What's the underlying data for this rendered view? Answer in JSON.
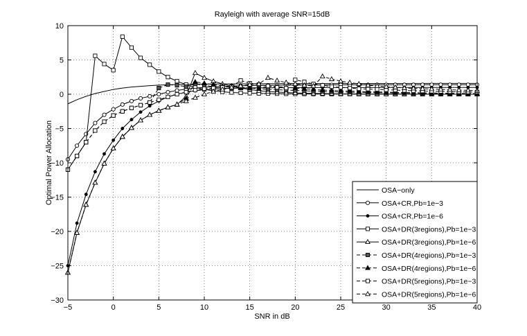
{
  "chart_data": {
    "type": "line",
    "title": "Rayleigh with average SNR=15dB",
    "xlabel": "SNR in dB",
    "ylabel": "Optimal Power Allocation",
    "xlim": [
      -5,
      40
    ],
    "ylim": [
      -30,
      10
    ],
    "xticks": [
      -5,
      0,
      5,
      10,
      15,
      20,
      25,
      30,
      35,
      40
    ],
    "yticks": [
      -30,
      -25,
      -20,
      -15,
      -10,
      -5,
      0,
      5,
      10
    ],
    "grid": true,
    "legend_position": "bottom-right",
    "series": [
      {
        "name": "OSA−only",
        "line": "solid",
        "marker": "none",
        "x": [
          -5,
          -4,
          -3,
          -2,
          -1,
          0,
          1,
          2,
          3,
          4,
          5,
          6,
          7,
          8,
          9,
          10,
          12,
          15,
          20,
          25,
          30,
          35,
          40
        ],
        "y": [
          -1.4,
          -0.8,
          -0.3,
          0.1,
          0.4,
          0.7,
          0.9,
          1.05,
          1.15,
          1.25,
          1.32,
          1.37,
          1.41,
          1.44,
          1.46,
          1.48,
          1.5,
          1.52,
          1.55,
          1.56,
          1.57,
          1.58,
          1.58
        ]
      },
      {
        "name": "OSA+CR,Pb=1e−3",
        "line": "solid",
        "marker": "circle",
        "x": [
          -5,
          -4,
          -3,
          -2,
          -1,
          0,
          1,
          2,
          3,
          4,
          5,
          6,
          7,
          8,
          9,
          10,
          11,
          12,
          13,
          14,
          15,
          16,
          17,
          18,
          19,
          20,
          21,
          22,
          23,
          24,
          25,
          26,
          27,
          28,
          29,
          30,
          31,
          32,
          33,
          34,
          35,
          36,
          37,
          38,
          39,
          40
        ],
        "y": [
          -9.5,
          -7.5,
          -5.8,
          -4.2,
          -3.0,
          -2.2,
          -1.5,
          -1.0,
          -0.6,
          -0.3,
          0.0,
          0.3,
          0.55,
          0.75,
          0.9,
          1.0,
          1.1,
          1.15,
          1.2,
          1.23,
          1.26,
          1.28,
          1.3,
          1.31,
          1.32,
          1.33,
          1.34,
          1.35,
          1.35,
          1.36,
          1.36,
          1.37,
          1.37,
          1.37,
          1.38,
          1.38,
          1.38,
          1.38,
          1.38,
          1.39,
          1.39,
          1.39,
          1.39,
          1.39,
          1.39,
          1.39
        ]
      },
      {
        "name": "OSA+CR,Pb=1e−6",
        "line": "solid",
        "marker": "dot",
        "x": [
          -5,
          -4,
          -3,
          -2,
          -1,
          0,
          1,
          2,
          3,
          4,
          5,
          6,
          7,
          8,
          9,
          10,
          11,
          12,
          13,
          14,
          15,
          16,
          17,
          18,
          19,
          20,
          21,
          22,
          23,
          24,
          25,
          26,
          27,
          28,
          29,
          30,
          31,
          32,
          33,
          34,
          35,
          36,
          37,
          38,
          39,
          40
        ],
        "y": [
          -25.0,
          -18.8,
          -14.6,
          -11.3,
          -8.7,
          -6.7,
          -5.0,
          -3.7,
          -2.6,
          -1.7,
          -1.0,
          -0.4,
          0.0,
          0.3,
          0.5,
          0.65,
          0.75,
          0.82,
          0.87,
          0.9,
          0.92,
          0.93,
          0.94,
          0.95,
          0.95,
          0.96,
          0.96,
          0.96,
          0.97,
          0.97,
          0.97,
          0.97,
          0.97,
          0.97,
          0.98,
          0.98,
          0.98,
          0.98,
          0.98,
          0.98,
          0.98,
          0.98,
          0.98,
          0.98,
          0.98,
          0.98
        ]
      },
      {
        "name": "OSA+DR(3regions),Pb=1e−3",
        "line": "solid",
        "marker": "square",
        "x": [
          -5,
          -4,
          -3,
          -2,
          -1,
          0,
          1,
          2,
          3,
          4,
          5,
          6,
          7,
          8,
          9,
          10,
          11,
          12,
          13,
          14,
          15,
          16,
          17,
          18,
          19,
          20,
          21,
          22,
          23,
          24,
          25,
          26,
          27,
          28,
          29,
          30,
          31,
          32,
          33,
          34,
          35,
          36,
          37,
          38,
          39,
          40
        ],
        "y": [
          -11.0,
          -9.0,
          -7.0,
          5.6,
          4.4,
          3.5,
          8.4,
          6.8,
          5.3,
          4.3,
          3.3,
          2.5,
          1.9,
          1.4,
          1.0,
          0.7,
          0.5,
          0.35,
          0.25,
          0.2,
          0.15,
          0.12,
          0.1,
          0.08,
          0.06,
          0.05,
          0.04,
          0.03,
          0.03,
          0.02,
          0.02,
          0.02,
          0.01,
          0.01,
          0.01,
          0.01,
          0.01,
          0.01,
          0.0,
          0.0,
          0.0,
          0.0,
          0.0,
          0.0,
          0.0,
          0.0
        ]
      },
      {
        "name": "OSA+DR(3regions),Pb=1e−6",
        "line": "solid",
        "marker": "triangle",
        "x": [
          -5,
          -4,
          -3,
          -2,
          -1,
          0,
          1,
          2,
          3,
          4,
          5,
          6,
          7,
          8,
          9,
          10,
          11,
          12,
          13,
          14,
          15,
          16,
          17,
          18,
          19,
          20,
          21,
          22,
          23,
          24,
          25,
          26,
          27,
          28,
          29,
          30,
          31,
          32,
          33,
          34,
          35,
          36,
          37,
          38,
          39,
          40
        ],
        "y": [
          -26.0,
          -20.2,
          -16.1,
          -12.9,
          -10.1,
          -7.9,
          -6.2,
          -4.9,
          -3.8,
          -3.0,
          -2.4,
          -1.9,
          -1.5,
          -0.3,
          3.1,
          2.4,
          1.9,
          1.5,
          1.2,
          0.9,
          0.7,
          0.5,
          0.4,
          0.3,
          0.25,
          0.2,
          0.15,
          0.12,
          0.1,
          0.08,
          0.06,
          0.05,
          0.04,
          0.03,
          0.03,
          0.02,
          0.02,
          0.01,
          0.01,
          0.01,
          0.01,
          0.01,
          0.0,
          0.0,
          0.0,
          0.0
        ]
      },
      {
        "name": "OSA+DR(4regions),Pb=1e−3",
        "line": "dashed",
        "marker": "square-filled",
        "x": [
          -5,
          -4,
          -3,
          -2,
          -1,
          0,
          1,
          2,
          3,
          4,
          5,
          6,
          7,
          8,
          9,
          10,
          11,
          12,
          13,
          14,
          15,
          16,
          17,
          18,
          19,
          20,
          21,
          22,
          23,
          24,
          25,
          26,
          27,
          28,
          29,
          30,
          31,
          32,
          33,
          34,
          35,
          36,
          37,
          38,
          39,
          40
        ],
        "y": [
          -11.0,
          -9.0,
          -7.0,
          -5.3,
          -4.0,
          -3.1,
          -2.5,
          -2.0,
          -1.6,
          -1.2,
          0.9,
          1.4,
          1.3,
          1.1,
          1.5,
          1.3,
          1.1,
          0.9,
          0.8,
          1.0,
          0.9,
          0.8,
          0.7,
          0.65,
          0.6,
          0.55,
          0.5,
          0.45,
          0.4,
          0.36,
          0.33,
          0.3,
          0.27,
          0.25,
          0.23,
          0.21,
          0.19,
          0.17,
          0.15,
          0.13,
          0.12,
          0.11,
          0.1,
          0.09,
          0.08,
          0.07
        ]
      },
      {
        "name": "OSA+DR(4regions),Pb=1e−6",
        "line": "dashed",
        "marker": "triangle-filled",
        "x": [
          -5,
          -4,
          -3,
          -2,
          -1,
          0,
          1,
          2,
          3,
          4,
          5,
          6,
          7,
          8,
          9,
          10,
          11,
          12,
          13,
          14,
          15,
          16,
          17,
          18,
          19,
          20,
          21,
          22,
          23,
          24,
          25,
          26,
          27,
          28,
          29,
          30,
          31,
          32,
          33,
          34,
          35,
          36,
          37,
          38,
          39,
          40
        ],
        "y": [
          -26.0,
          -20.2,
          -16.1,
          -12.9,
          -10.1,
          -7.9,
          -6.2,
          -4.9,
          -3.8,
          -3.0,
          -2.4,
          -1.9,
          -1.5,
          -0.6,
          1.8,
          1.6,
          1.4,
          1.2,
          1.1,
          1.0,
          0.9,
          0.8,
          1.2,
          1.1,
          1.0,
          0.9,
          0.8,
          0.7,
          0.6,
          0.55,
          0.5,
          0.45,
          0.4,
          0.36,
          0.33,
          0.3,
          0.27,
          0.24,
          0.22,
          0.2,
          0.18,
          0.16,
          0.14,
          0.12,
          0.1,
          0.09
        ]
      },
      {
        "name": "OSA+DR(5regions),Pb=1e−3",
        "line": "dashed",
        "marker": "square",
        "x": [
          -5,
          -4,
          -3,
          -2,
          -1,
          0,
          1,
          2,
          3,
          4,
          5,
          6,
          7,
          8,
          9,
          10,
          11,
          12,
          13,
          14,
          15,
          16,
          17,
          18,
          19,
          20,
          21,
          22,
          23,
          24,
          25,
          26,
          27,
          28,
          29,
          30,
          31,
          32,
          33,
          34,
          35,
          36,
          37,
          38,
          39,
          40
        ],
        "y": [
          -11.0,
          -9.0,
          -7.0,
          -5.3,
          -4.0,
          -3.1,
          -2.5,
          -2.0,
          -1.6,
          -1.2,
          -0.8,
          -0.4,
          0.0,
          0.3,
          0.6,
          0.8,
          0.9,
          1.0,
          1.1,
          2.0,
          1.6,
          1.4,
          1.2,
          1.0,
          0.9,
          2.1,
          1.8,
          1.5,
          1.3,
          1.1,
          1.0,
          0.9,
          0.8,
          0.75,
          0.7,
          0.65,
          0.6,
          0.55,
          0.5,
          0.47,
          0.44,
          0.41,
          0.38,
          0.35,
          0.33,
          0.31
        ]
      },
      {
        "name": "OSA+DR(5regions),Pb=1e−6",
        "line": "dashed",
        "marker": "triangle",
        "x": [
          -5,
          -4,
          -3,
          -2,
          -1,
          0,
          1,
          2,
          3,
          4,
          5,
          6,
          7,
          8,
          9,
          10,
          11,
          12,
          13,
          14,
          15,
          16,
          17,
          18,
          19,
          20,
          21,
          22,
          23,
          24,
          25,
          26,
          27,
          28,
          29,
          30,
          31,
          32,
          33,
          34,
          35,
          36,
          37,
          38,
          39,
          40
        ],
        "y": [
          -26.0,
          -20.2,
          -16.1,
          -12.9,
          -10.1,
          -7.9,
          -6.2,
          -4.9,
          -3.8,
          -3.0,
          -2.4,
          -1.9,
          -1.5,
          -1.0,
          -0.5,
          0.0,
          0.4,
          0.7,
          1.0,
          1.2,
          1.4,
          1.5,
          2.4,
          2.0,
          1.7,
          1.5,
          1.3,
          1.2,
          2.6,
          2.2,
          1.9,
          1.7,
          1.5,
          1.3,
          1.2,
          1.1,
          1.0,
          0.9,
          0.85,
          0.8,
          0.75,
          0.7,
          0.65,
          0.6,
          0.56,
          0.52
        ]
      }
    ]
  }
}
